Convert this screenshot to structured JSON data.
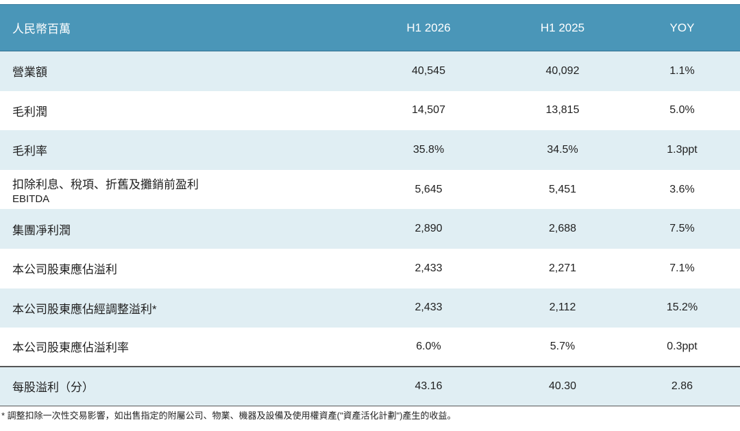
{
  "table": {
    "headers": [
      "人民幣百萬",
      "H1 2026",
      "H1 2025",
      "YOY"
    ],
    "rows": [
      {
        "label": "營業額",
        "sublabel": "",
        "h1_2026": "40,545",
        "h1_2025": "40,092",
        "yoy": "1.1%"
      },
      {
        "label": "毛利潤",
        "sublabel": "",
        "h1_2026": "14,507",
        "h1_2025": "13,815",
        "yoy": "5.0%"
      },
      {
        "label": "毛利率",
        "sublabel": "",
        "h1_2026": "35.8%",
        "h1_2025": "34.5%",
        "yoy": "1.3ppt"
      },
      {
        "label": "扣除利息、稅項、折舊及攤銷前盈利",
        "sublabel": "EBITDA",
        "h1_2026": "5,645",
        "h1_2025": "5,451",
        "yoy": "3.6%"
      },
      {
        "label": "集團凈利潤",
        "sublabel": "",
        "h1_2026": "2,890",
        "h1_2025": "2,688",
        "yoy": "7.5%"
      },
      {
        "label": "本公司股東應佔溢利",
        "sublabel": "",
        "h1_2026": "2,433",
        "h1_2025": "2,271",
        "yoy": "7.1%"
      },
      {
        "label": "本公司股東應佔經調整溢利*",
        "sublabel": "",
        "h1_2026": "2,433",
        "h1_2025": "2,112",
        "yoy": "15.2%"
      },
      {
        "label": "本公司股東應佔溢利率",
        "sublabel": "",
        "h1_2026": "6.0%",
        "h1_2025": "5.7%",
        "yoy": "0.3ppt"
      },
      {
        "label": "每股溢利（分）",
        "sublabel": "",
        "h1_2026": "43.16",
        "h1_2025": "40.30",
        "yoy": "2.86"
      }
    ]
  },
  "footnote": "* 調整扣除一次性交易影響，如出售指定的附屬公司、物業、機器及設備及使用權資產(\"資產活化計劃\")產生的收益。",
  "colors": {
    "header_bg": "#4a96b8",
    "stripe_bg": "#e0eef3"
  }
}
